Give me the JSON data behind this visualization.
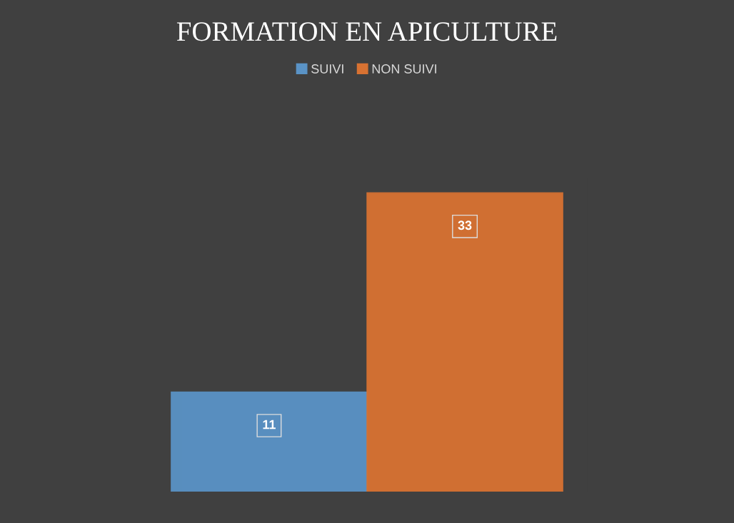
{
  "chart_data": {
    "type": "bar",
    "title": "FORMATION EN APICULTURE",
    "categories": [
      null
    ],
    "series": [
      {
        "name": "SUIVI",
        "color": "#5a93c6",
        "values": [
          11
        ]
      },
      {
        "name": "NON SUIVI",
        "color": "#d87232",
        "values": [
          33
        ]
      }
    ],
    "data_labels": true,
    "legend": "top",
    "grid": false,
    "tick_labels": false
  }
}
